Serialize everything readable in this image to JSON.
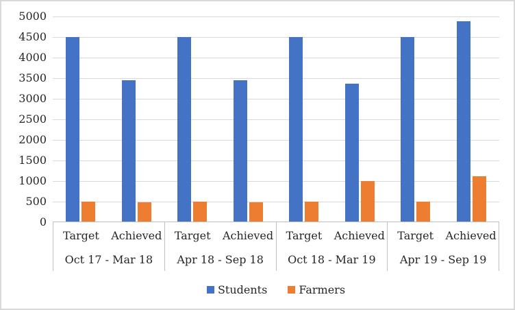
{
  "chart_data": {
    "type": "bar",
    "title": "",
    "xlabel": "",
    "ylabel": "",
    "groups": [
      "Oct 17 - Mar 18",
      "Apr 18 - Sep 18",
      "Oct 18 - Mar 19",
      "Apr 19 - Sep 19"
    ],
    "subcategories": [
      "Target",
      "Achieved"
    ],
    "series": [
      {
        "name": "Students",
        "color": "#4472C4",
        "values": [
          [
            4500,
            3450
          ],
          [
            4500,
            3450
          ],
          [
            4500,
            3370
          ],
          [
            4500,
            4880
          ]
        ]
      },
      {
        "name": "Farmers",
        "color": "#ED7D31",
        "values": [
          [
            500,
            480
          ],
          [
            500,
            490
          ],
          [
            500,
            1000
          ],
          [
            500,
            1120
          ]
        ]
      }
    ],
    "ylim": [
      0,
      5000
    ],
    "yticks": [
      0,
      500,
      1000,
      1500,
      2000,
      2500,
      3000,
      3500,
      4000,
      4500,
      5000
    ],
    "grid": true,
    "legend_position": "bottom",
    "colors": {
      "gridline": "#d9d9d9",
      "axis_line": "#bfbfbf",
      "text": "#262626",
      "border": "#d9d9d9"
    }
  }
}
